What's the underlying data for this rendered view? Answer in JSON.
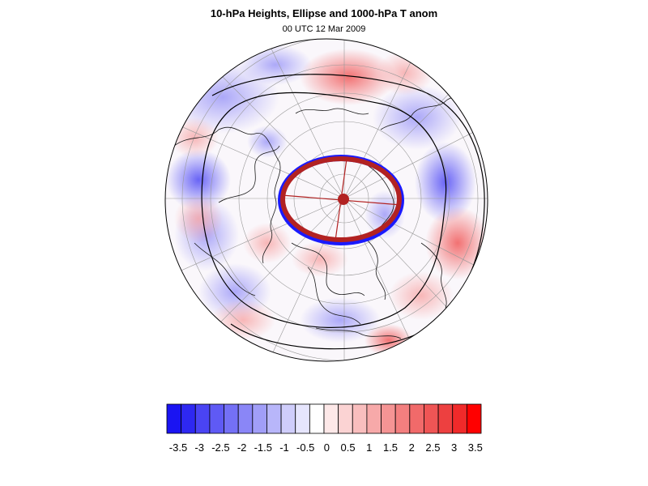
{
  "title": "10-hPa Heights, Ellipse and 1000-hPa T anom",
  "subtitle": "00 UTC 12 Mar 2009",
  "colorbar": {
    "colors": [
      "#1a14f2",
      "#2e28f2",
      "#4a44f4",
      "#5f5af5",
      "#7470f6",
      "#8a86f7",
      "#a19ef8",
      "#b8b6fa",
      "#cfcdfb",
      "#e6e5fd",
      "#ffffff",
      "#fde8e8",
      "#fbd3d3",
      "#f9bebe",
      "#f7a9a9",
      "#f59494",
      "#f37f7f",
      "#f16a6a",
      "#ef5555",
      "#ed4040",
      "#f02a2a",
      "#ff0000"
    ],
    "labels": [
      "-3.5",
      "-3",
      "-2.5",
      "-2",
      "-1.5",
      "-1",
      "-0.5",
      "0",
      "0.5",
      "1",
      "1.5",
      "2",
      "2.5",
      "3",
      "3.5"
    ]
  },
  "map": {
    "projection": "orthographic-polar",
    "ellipse_color": "#b22222",
    "ellipse_edge_color": "#1a1aff",
    "contour_color": "#000000",
    "coast_color": "#1a1a1a",
    "grid_color": "#888888"
  }
}
